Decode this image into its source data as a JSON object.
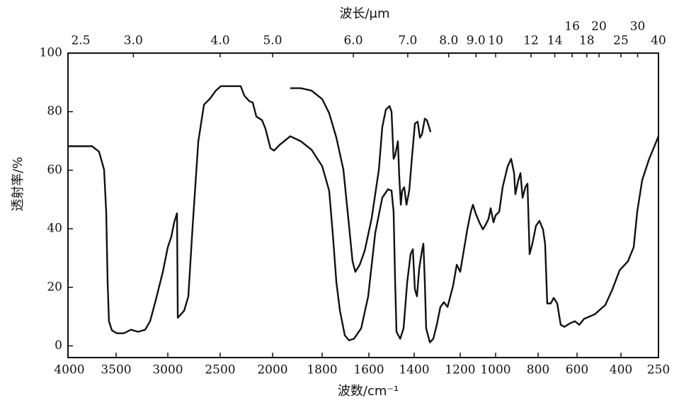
{
  "chart_data": {
    "type": "line",
    "x_label": "波数/cm⁻¹",
    "x2_label": "波长/μm",
    "y_label": "透射率/%",
    "xlim": [
      4000,
      250
    ],
    "xticks": [
      4000,
      3500,
      3000,
      2500,
      2000,
      1800,
      1600,
      1400,
      1200,
      1000,
      800,
      600,
      400,
      250
    ],
    "x2ticks": [
      2.5,
      {
        "value": 3,
        "label": "3.0"
      },
      {
        "value": 4,
        "label": "4.0"
      },
      {
        "value": 5,
        "label": "5.0"
      },
      {
        "value": 6,
        "label": "6.0"
      },
      {
        "value": 7,
        "label": "7.0"
      },
      {
        "value": 8,
        "label": "8.0"
      },
      {
        "value": 9,
        "label": "9.0"
      },
      10,
      12,
      14,
      16,
      18,
      20,
      25,
      30,
      40
    ],
    "ylim": [
      -4,
      100
    ],
    "yticks": [
      0,
      20,
      40,
      60,
      80,
      100
    ],
    "grid": false,
    "series": [
      {
        "color": "#111111",
        "x": [
          4000,
          3750,
          3677,
          3625,
          3603,
          3588,
          3574,
          3544,
          3493,
          3425,
          3356,
          3288,
          3219,
          3171,
          3116,
          3048,
          3000,
          2966,
          2939,
          2912,
          2905,
          2844,
          2804,
          2763,
          2709,
          2655,
          2601,
          2541,
          2493,
          2304,
          2270,
          2223,
          2189,
          2155,
          2101,
          2068,
          2020,
          1994,
          1971,
          1929,
          1886,
          1843,
          1800,
          1770,
          1755,
          1739,
          1724,
          1703,
          1685,
          1664,
          1633,
          1603,
          1572,
          1541,
          1516,
          1500,
          1491,
          1484,
          1478,
          1462,
          1447,
          1431,
          1416,
          1406,
          1397,
          1388,
          1378,
          1366,
          1360,
          1354,
          1348,
          1332,
          1317,
          1302,
          1286,
          1271,
          1255,
          1231,
          1215,
          1200,
          1180,
          1160,
          1140,
          1128,
          1112,
          1092,
          1072,
          1056,
          1040,
          1028,
          1012,
          1000,
          983,
          967,
          943,
          927,
          913,
          907,
          893,
          883,
          873,
          860,
          850,
          840,
          827,
          810,
          793,
          775,
          764,
          753,
          735,
          720,
          702,
          684,
          665,
          636,
          611,
          590,
          568,
          519,
          471,
          439,
          406,
          372,
          349,
          335,
          315,
          287,
          258,
          250
        ],
        "values": [
          68.2,
          68.2,
          66.3,
          60.2,
          45.8,
          21.7,
          8.4,
          5.3,
          4.3,
          4.3,
          5.5,
          4.8,
          5.5,
          8.4,
          15.7,
          25.3,
          33.7,
          37.3,
          42.2,
          45.3,
          9.6,
          12.0,
          16.9,
          41.0,
          69.9,
          82.4,
          84.3,
          87.2,
          88.7,
          88.7,
          85.5,
          83.6,
          83.1,
          78.3,
          77.1,
          74.2,
          67.5,
          66.7,
          68.7,
          71.6,
          69.9,
          67.0,
          61.4,
          53.0,
          38.6,
          21.7,
          12.0,
          3.6,
          1.9,
          2.4,
          6.0,
          16.9,
          38.6,
          50.6,
          53.5,
          53.0,
          45.8,
          21.7,
          4.8,
          2.4,
          6.0,
          21.7,
          31.3,
          33.0,
          19.3,
          16.9,
          26.5,
          32.5,
          34.9,
          21.7,
          6.0,
          1.2,
          2.4,
          7.2,
          13.3,
          14.9,
          13.3,
          20.5,
          27.7,
          25.3,
          32.5,
          39.8,
          45.8,
          48.2,
          45.1,
          42.2,
          39.8,
          41.4,
          43.4,
          47.0,
          42.2,
          44.6,
          45.8,
          54.2,
          61.4,
          63.9,
          59.0,
          51.8,
          56.6,
          59.0,
          50.6,
          54.2,
          55.4,
          31.3,
          34.9,
          41.0,
          42.7,
          39.8,
          34.9,
          14.5,
          14.5,
          16.4,
          14.5,
          7.2,
          6.5,
          7.7,
          8.4,
          7.2,
          9.2,
          10.8,
          14.0,
          19.3,
          25.8,
          28.9,
          33.7,
          45.8,
          56.6,
          63.9,
          69.9,
          71.6
        ]
      },
      {
        "color": "#111111",
        "x": [
          1929,
          1886,
          1843,
          1800,
          1770,
          1739,
          1709,
          1688,
          1670,
          1658,
          1639,
          1618,
          1588,
          1556,
          1541,
          1525,
          1509,
          1500,
          1491,
          1484,
          1472,
          1466,
          1459,
          1453,
          1444,
          1434,
          1422,
          1409,
          1397,
          1385,
          1375,
          1366,
          1354,
          1345,
          1335,
          1329
        ],
        "values": [
          88.0,
          88.0,
          87.2,
          84.3,
          79.5,
          71.1,
          60.2,
          43.4,
          28.9,
          25.3,
          27.7,
          32.5,
          43.4,
          60.2,
          74.7,
          80.7,
          81.9,
          80.0,
          63.9,
          65.1,
          69.9,
          57.8,
          48.2,
          53.0,
          54.2,
          48.2,
          53.0,
          65.1,
          75.9,
          76.6,
          71.1,
          72.3,
          77.6,
          77.1,
          74.7,
          73.0
        ]
      }
    ]
  }
}
